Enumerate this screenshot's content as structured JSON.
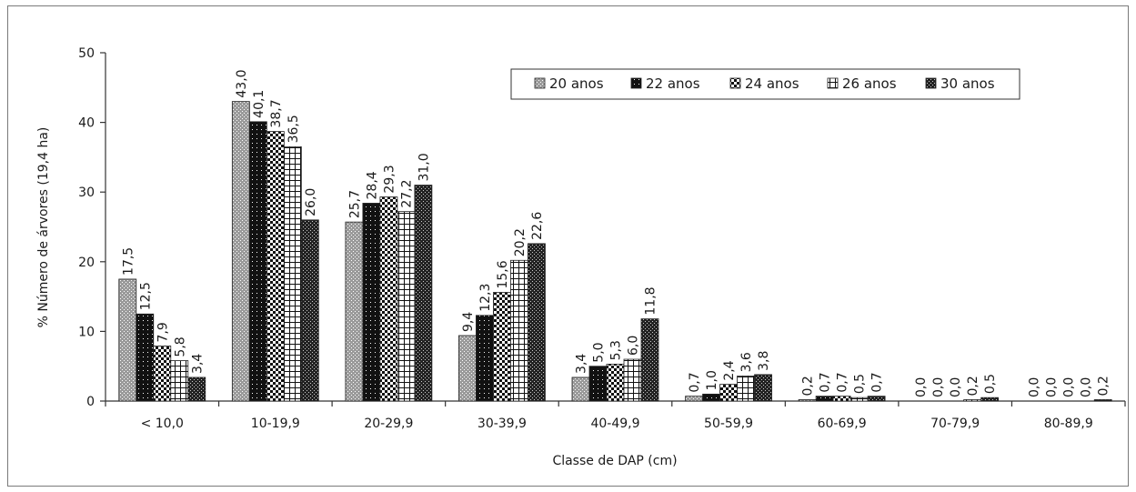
{
  "chart_data": {
    "type": "bar",
    "title": "",
    "xlabel": "Classe de DAP (cm)",
    "ylabel": "% Número de árvores (19,4 ha)",
    "ylim": [
      0,
      50
    ],
    "yticks": [
      0,
      10,
      20,
      30,
      40,
      50
    ],
    "categories": [
      "< 10,0",
      "10-19,9",
      "20-29,9",
      "30-39,9",
      "40-49,9",
      "50-59,9",
      "60-69,9",
      "70-79,9",
      "80-89,9"
    ],
    "series": [
      {
        "name": "20 anos",
        "values": [
          17.5,
          43.0,
          25.7,
          9.4,
          3.4,
          0.7,
          0.2,
          0.0,
          0.0
        ],
        "labels": [
          "17,5",
          "43,0",
          "25,7",
          "9,4",
          "3,4",
          "0,7",
          "0,2",
          "0,0",
          "0,0"
        ]
      },
      {
        "name": "22 anos",
        "values": [
          12.5,
          40.1,
          28.4,
          12.3,
          5.0,
          1.0,
          0.7,
          0.0,
          0.0
        ],
        "labels": [
          "12,5",
          "40,1",
          "28,4",
          "12,3",
          "5,0",
          "1,0",
          "0,7",
          "0,0",
          "0,0"
        ]
      },
      {
        "name": "24 anos",
        "values": [
          7.9,
          38.7,
          29.3,
          15.6,
          5.3,
          2.4,
          0.7,
          0.0,
          0.0
        ],
        "labels": [
          "7,9",
          "38,7",
          "29,3",
          "15,6",
          "5,3",
          "2,4",
          "0,7",
          "0,0",
          "0,0"
        ]
      },
      {
        "name": "26 anos",
        "values": [
          5.8,
          36.5,
          27.2,
          20.2,
          6.0,
          3.6,
          0.5,
          0.2,
          0.0
        ],
        "labels": [
          "5,8",
          "36,5",
          "27,2",
          "20,2",
          "6,0",
          "3,6",
          "0,5",
          "0,2",
          "0,0"
        ]
      },
      {
        "name": "30 anos",
        "values": [
          3.4,
          26.0,
          31.0,
          22.6,
          11.8,
          3.8,
          0.7,
          0.5,
          0.2
        ],
        "labels": [
          "3,4",
          "26,0",
          "31,0",
          "22,6",
          "11,8",
          "3,8",
          "0,7",
          "0,5",
          "0,2"
        ]
      }
    ],
    "legend": "top-right",
    "grid": false
  }
}
